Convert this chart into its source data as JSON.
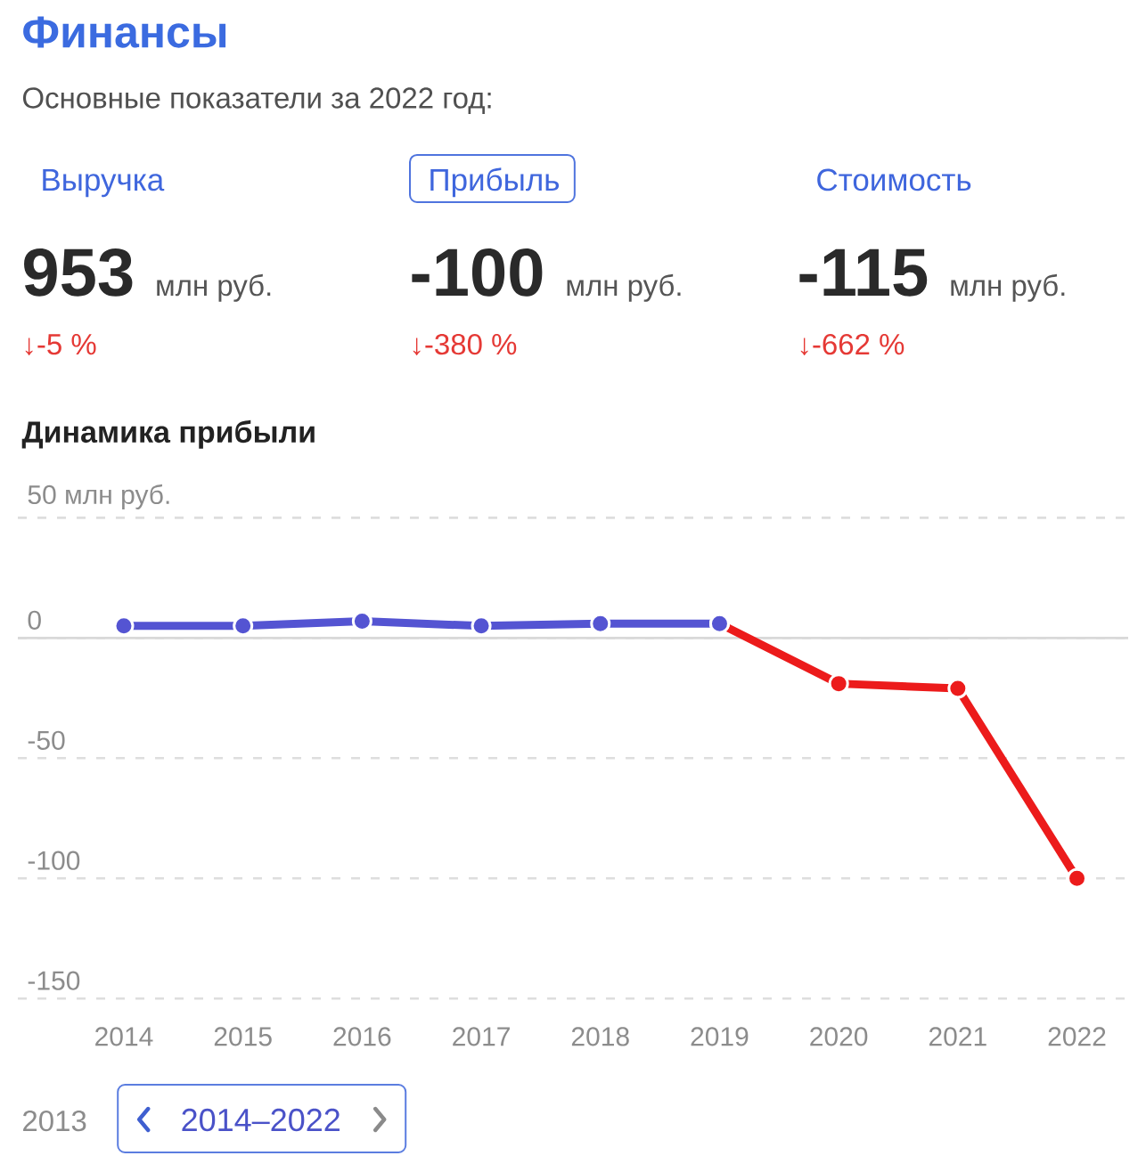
{
  "chart_data": [
    {
      "type": "other",
      "title": "Финансы",
      "subtitle": "Основные показатели за 2022 год:",
      "annotations": [
        "Выручка",
        "953",
        "млн руб.",
        "↓-5 %",
        "Прибыль",
        "-100",
        "млн руб.",
        "↓-380 %",
        "Стоимость",
        "-115",
        "млн руб.",
        "↓-662 %"
      ]
    },
    {
      "type": "line",
      "title": "Динамика прибыли",
      "categories": [
        "2014",
        "2015",
        "2016",
        "2017",
        "2018",
        "2019",
        "2020",
        "2021",
        "2022"
      ],
      "series": [
        {
          "color": "#5454d2",
          "values": [
            5,
            5,
            7,
            5,
            6,
            6,
            null,
            null,
            null
          ]
        },
        {
          "color": "#ec1b1b",
          "values": [
            null,
            null,
            null,
            null,
            null,
            6,
            -19,
            -21,
            -100
          ]
        }
      ],
      "ylim": [
        -150,
        50
      ],
      "yticks": [
        {
          "value": 50,
          "label": "50 млн руб."
        },
        0,
        -50,
        -100,
        -150
      ],
      "grid": "y",
      "marker": "circle",
      "line_style": "solid",
      "ref_lines": [
        {
          "axis": "y",
          "value": 0,
          "color": "#d9d9d9",
          "line_style": "solid"
        }
      ],
      "annotations": [
        "2013",
        "2014–2022"
      ]
    }
  ]
}
